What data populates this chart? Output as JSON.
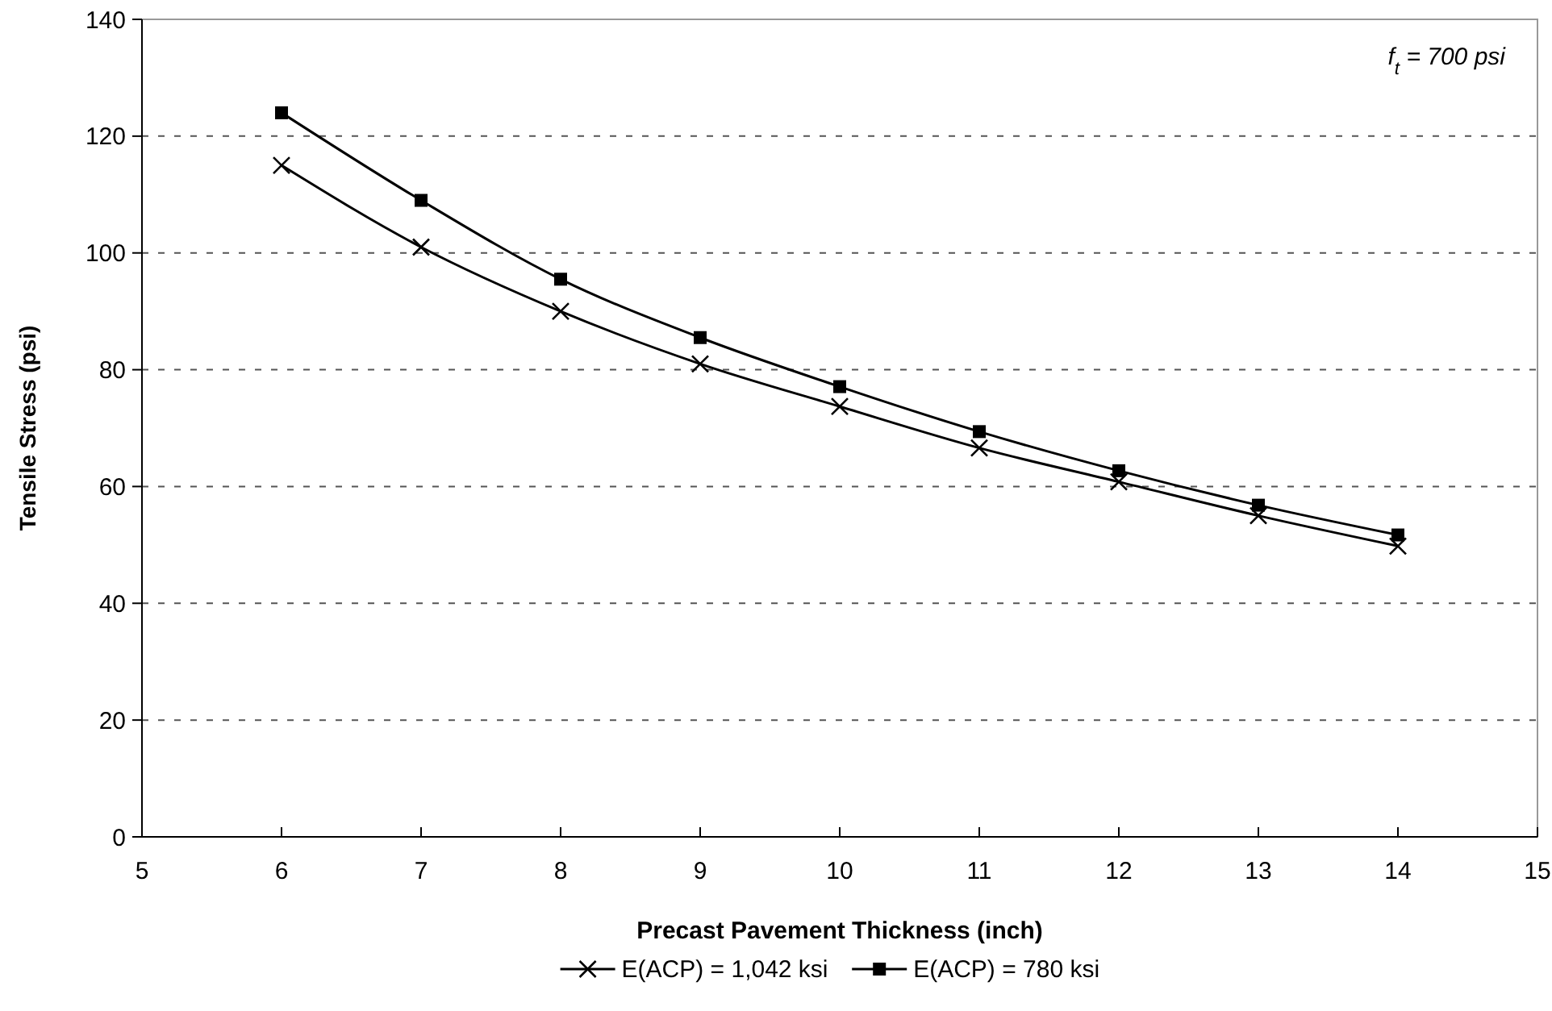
{
  "chart_data": {
    "type": "line",
    "xlabel": "Precast Pavement Thickness (inch)",
    "ylabel": "Tensile Stress (psi)",
    "annotations": [
      "f$_{t}$ = 700 psi"
    ],
    "x": [
      6,
      7,
      8,
      9,
      10,
      11,
      12,
      13,
      14
    ],
    "series": [
      {
        "name": "E(ACP) = 1,042 ksi",
        "color": "#000000",
        "marker": "cross",
        "values": [
          115,
          101,
          90,
          81,
          73.7,
          66.6,
          60.8,
          55,
          49.8
        ]
      },
      {
        "name": "E(ACP) = 780 ksi",
        "color": "#000000",
        "marker": "square",
        "values": [
          124,
          109,
          95.5,
          85.5,
          77.1,
          69.4,
          62.7,
          56.8,
          51.7
        ]
      }
    ],
    "xlim": [
      5,
      15
    ],
    "xticks": [
      5,
      6,
      7,
      8,
      9,
      10,
      11,
      12,
      13,
      14,
      15
    ],
    "ylim": [
      0,
      140
    ],
    "yticks": [
      0,
      20,
      40,
      60,
      80,
      100,
      120,
      140
    ],
    "grid": "y",
    "legend": "bottom",
    "line_style": "solid"
  }
}
